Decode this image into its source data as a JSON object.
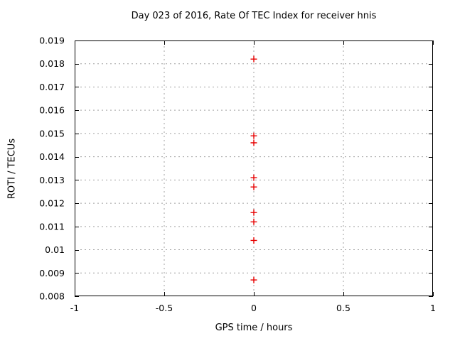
{
  "chart_data": {
    "type": "scatter",
    "title": "Day 023 of 2016, Rate Of TEC Index for receiver hnis",
    "xlabel": "GPS time / hours",
    "ylabel": "ROTI / TECUs",
    "xlim": [
      -1,
      1
    ],
    "ylim": [
      0.008,
      0.019
    ],
    "xticks": [
      -1,
      -0.5,
      0,
      0.5,
      1
    ],
    "xtick_labels": [
      "-1",
      "-0.5",
      "0",
      "0.5",
      "1"
    ],
    "yticks": [
      0.008,
      0.009,
      0.01,
      0.011,
      0.012,
      0.013,
      0.014,
      0.015,
      0.016,
      0.017,
      0.018,
      0.019
    ],
    "ytick_labels": [
      "0.008",
      "0.009",
      "0.01",
      "0.011",
      "0.012",
      "0.013",
      "0.014",
      "0.015",
      "0.016",
      "0.017",
      "0.018",
      "0.019"
    ],
    "grid": true,
    "grid_style": "dashed",
    "legend": "none",
    "marker": {
      "shape": "plus",
      "color": "#e60000",
      "size": 9
    },
    "colors": {
      "axis": "#000000",
      "grid": "#a0a0a0",
      "background": "#ffffff",
      "text": "#000000"
    },
    "series": [
      {
        "name": "ROTI",
        "x": [
          0,
          0,
          0,
          0,
          0,
          0,
          0,
          0,
          0
        ],
        "y": [
          0.0182,
          0.0149,
          0.0146,
          0.0131,
          0.0127,
          0.0116,
          0.0112,
          0.0104,
          0.0087
        ]
      }
    ]
  }
}
